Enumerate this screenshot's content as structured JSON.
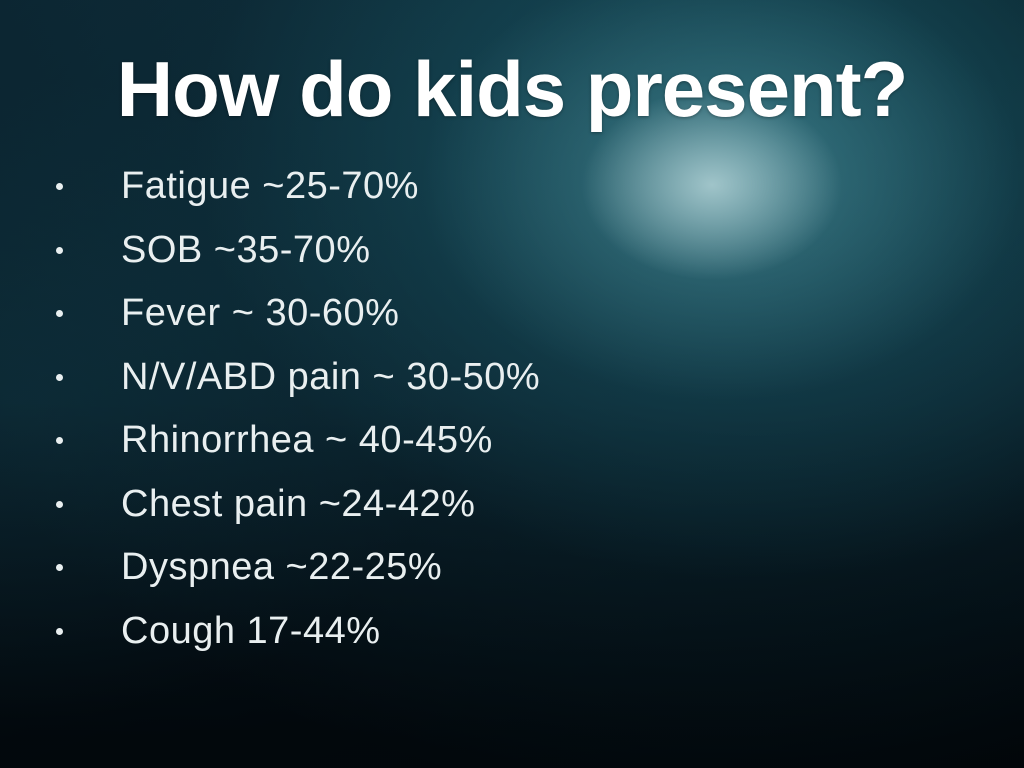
{
  "slide": {
    "title": "How do kids present?",
    "bullets": [
      "Fatigue ~25-70%",
      "SOB ~35-70%",
      "Fever ~ 30-60%",
      "N/V/ABD pain ~ 30-50%",
      "Rhinorrhea ~ 40-45%",
      "Chest pain ~24-42%",
      "Dyspnea ~22-25%",
      "Cough 17-44%"
    ],
    "colors": {
      "title_text": "#ffffff",
      "body_text": "#e9eff0",
      "background_teal": "#175563",
      "background_glow": "#9fc4c9",
      "background_dark": "#04101a"
    }
  }
}
